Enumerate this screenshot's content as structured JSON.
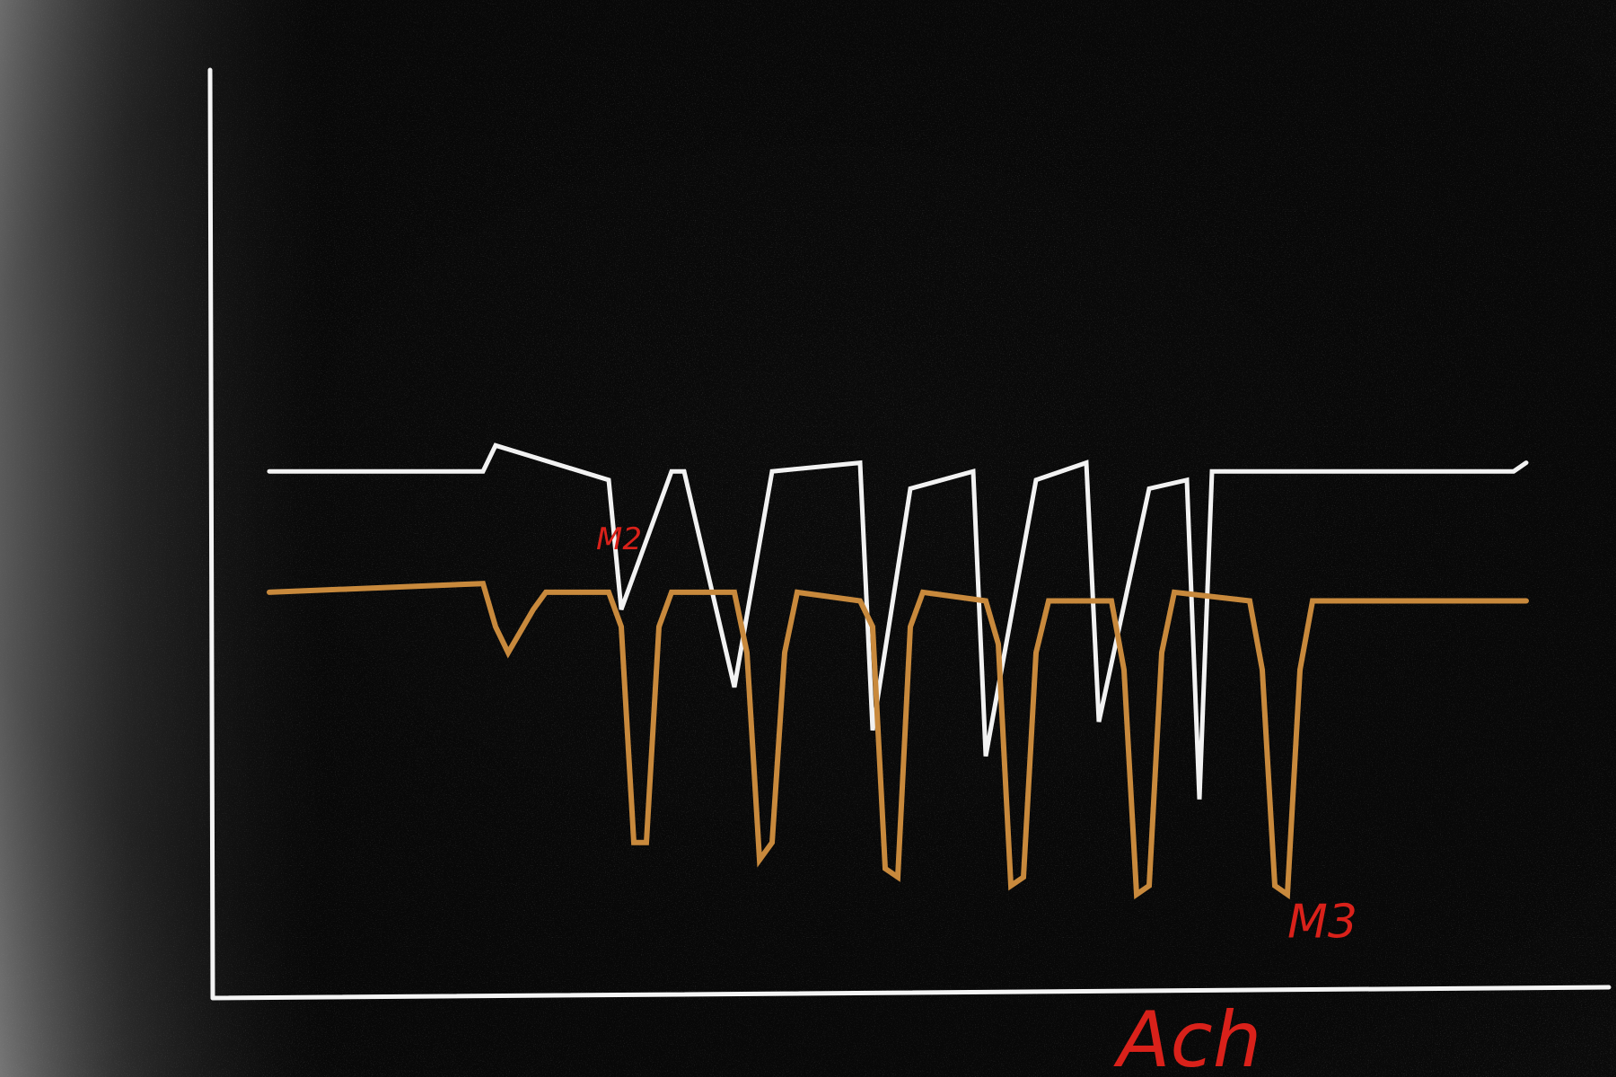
{
  "chart_data": {
    "type": "line",
    "title": "",
    "xlabel": "Ach",
    "ylabel": "",
    "grid": false,
    "xlim": [
      0,
      100
    ],
    "ylim": [
      0,
      100
    ],
    "series": [
      {
        "color": "#f2f2f2",
        "points": [
          [
            0,
            61
          ],
          [
            17,
            61
          ],
          [
            18,
            64
          ],
          [
            27,
            60
          ],
          [
            28,
            45
          ],
          [
            32,
            61
          ],
          [
            33,
            61
          ],
          [
            37,
            36
          ],
          [
            40,
            61
          ],
          [
            47,
            62
          ],
          [
            48,
            31
          ],
          [
            51,
            59
          ],
          [
            56,
            61
          ],
          [
            57,
            28
          ],
          [
            61,
            60
          ],
          [
            65,
            62
          ],
          [
            66,
            32
          ],
          [
            70,
            59
          ],
          [
            73,
            60
          ],
          [
            74,
            23
          ],
          [
            75,
            61
          ],
          [
            99,
            61
          ],
          [
            100,
            62
          ]
        ]
      },
      {
        "color": "#c8893c",
        "points": [
          [
            0,
            47
          ],
          [
            17,
            48
          ],
          [
            18,
            43
          ],
          [
            19,
            40
          ],
          [
            21,
            45
          ],
          [
            22,
            47
          ],
          [
            27,
            47
          ],
          [
            28,
            43
          ],
          [
            29,
            18
          ],
          [
            30,
            18
          ],
          [
            31,
            43
          ],
          [
            32,
            47
          ],
          [
            37,
            47
          ],
          [
            38,
            40
          ],
          [
            39,
            16
          ],
          [
            40,
            18
          ],
          [
            41,
            40
          ],
          [
            42,
            47
          ],
          [
            47,
            46
          ],
          [
            48,
            43
          ],
          [
            49,
            15
          ],
          [
            50,
            14
          ],
          [
            51,
            43
          ],
          [
            52,
            47
          ],
          [
            57,
            46
          ],
          [
            58,
            41
          ],
          [
            59,
            13
          ],
          [
            60,
            14
          ],
          [
            61,
            40
          ],
          [
            62,
            46
          ],
          [
            67,
            46
          ],
          [
            68,
            38
          ],
          [
            69,
            12
          ],
          [
            70,
            13
          ],
          [
            71,
            40
          ],
          [
            72,
            47
          ],
          [
            78,
            46
          ],
          [
            79,
            38
          ],
          [
            80,
            13
          ],
          [
            81,
            12
          ],
          [
            82,
            38
          ],
          [
            83,
            46
          ],
          [
            88,
            46
          ],
          [
            100,
            46
          ]
        ]
      }
    ],
    "annotations": [
      {
        "text": "M2",
        "color": "#d9211a",
        "x": 26,
        "y": 52
      },
      {
        "text": "M3",
        "color": "#d9211a",
        "x": 81,
        "y": 7
      }
    ]
  }
}
